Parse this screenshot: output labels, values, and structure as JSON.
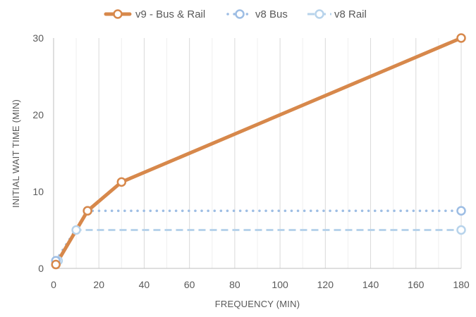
{
  "chart_data": {
    "type": "line",
    "title": "",
    "xlabel": "FREQUENCY (MIN)",
    "ylabel": "INITIAL WAIT TIME (MIN)",
    "xlim": [
      0,
      180
    ],
    "ylim": [
      0,
      30
    ],
    "x_ticks": [
      0,
      20,
      40,
      60,
      80,
      100,
      120,
      140,
      160,
      180
    ],
    "y_ticks": [
      0,
      10,
      20,
      30
    ],
    "grid": "vertical major and minor gridlines",
    "legend_position": "top",
    "series": [
      {
        "name": "v9 - Bus & Rail",
        "color": "#D7884B",
        "line_style": "solid",
        "marker": "hollow-circle",
        "points": [
          [
            1,
            0.5
          ],
          [
            15,
            7.5
          ],
          [
            30,
            11.25
          ],
          [
            180,
            30
          ]
        ]
      },
      {
        "name": "v8 Bus",
        "color": "#9DBDE4",
        "line_style": "dotted",
        "marker": "hollow-circle",
        "points": [
          [
            1,
            1
          ],
          [
            15,
            7.5
          ],
          [
            180,
            7.5
          ]
        ]
      },
      {
        "name": "v8 Rail",
        "color": "#B7D3EB",
        "line_style": "dashed",
        "marker": "hollow-circle",
        "points": [
          [
            2,
            1
          ],
          [
            10,
            5
          ],
          [
            180,
            5
          ]
        ]
      }
    ]
  }
}
